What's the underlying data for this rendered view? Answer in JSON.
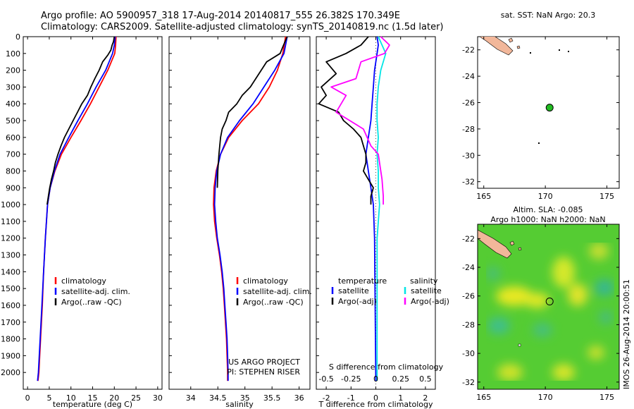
{
  "title": {
    "line1": "Argo profile: AO 5900957_318 17-Aug-2014 20140817_555 26.382S 170.349E",
    "line2": "Climatology: CARS2009. Satellite-adjusted climatology: synTS_20140819.nc (1.5d later)"
  },
  "colors": {
    "climatology": "#ff0000",
    "satellite": "#0000ff",
    "argo": "#000000",
    "sal_satellite": "#00e5e5",
    "sal_argo": "#ff00ff",
    "land": "#f2b79a",
    "marker": "#22bb22"
  },
  "credits": {
    "project": "US ARGO PROJECT",
    "pi": "PI: STEPHEN RISER"
  },
  "watermark": "IMOS 26-Aug-2014 20:00:51",
  "chart_data": [
    {
      "type": "line",
      "id": "temperature",
      "xlabel": "temperature (deg C)",
      "ylabel": "",
      "xlim": [
        -1,
        31
      ],
      "ylim": [
        2100,
        0
      ],
      "xticks": [
        0,
        5,
        10,
        15,
        20,
        25,
        30
      ],
      "yticks": [
        0,
        100,
        200,
        300,
        400,
        500,
        600,
        700,
        800,
        900,
        1000,
        1100,
        1200,
        1300,
        1400,
        1500,
        1600,
        1700,
        1800,
        1900,
        2000
      ],
      "legend": [
        "climatology",
        "satellite-adj. clim.",
        "Argo(..raw -QC)"
      ],
      "series": [
        {
          "name": "climatology",
          "color": "#ff0000",
          "points": [
            [
              20.4,
              0
            ],
            [
              20.3,
              50
            ],
            [
              20.1,
              100
            ],
            [
              18.5,
              200
            ],
            [
              16.5,
              300
            ],
            [
              14.5,
              400
            ],
            [
              12.3,
              500
            ],
            [
              10,
              600
            ],
            [
              7.8,
              700
            ],
            [
              6.3,
              800
            ],
            [
              5.2,
              900
            ],
            [
              4.6,
              1000
            ],
            [
              4.1,
              1200
            ],
            [
              3.7,
              1400
            ],
            [
              3.4,
              1600
            ],
            [
              3.0,
              1800
            ],
            [
              2.6,
              2000
            ],
            [
              2.4,
              2050
            ]
          ]
        },
        {
          "name": "satellite-adj. clim.",
          "color": "#0000ff",
          "points": [
            [
              20.2,
              0
            ],
            [
              20.0,
              50
            ],
            [
              19.6,
              100
            ],
            [
              18,
              200
            ],
            [
              15.8,
              300
            ],
            [
              13.8,
              400
            ],
            [
              11.6,
              500
            ],
            [
              9.5,
              600
            ],
            [
              7.5,
              700
            ],
            [
              6.2,
              800
            ],
            [
              5.2,
              900
            ],
            [
              4.6,
              1000
            ],
            [
              4.1,
              1200
            ],
            [
              3.7,
              1400
            ],
            [
              3.3,
              1600
            ],
            [
              2.9,
              1800
            ],
            [
              2.5,
              2000
            ],
            [
              2.3,
              2050
            ]
          ]
        },
        {
          "name": "Argo(..raw -QC)",
          "color": "#000000",
          "points": [
            [
              20.0,
              0
            ],
            [
              19.8,
              30
            ],
            [
              19.5,
              50
            ],
            [
              19.2,
              80
            ],
            [
              18.5,
              110
            ],
            [
              17.3,
              150
            ],
            [
              16.5,
              200
            ],
            [
              15.5,
              250
            ],
            [
              14.6,
              300
            ],
            [
              13.8,
              350
            ],
            [
              12.5,
              400
            ],
            [
              11.5,
              450
            ],
            [
              10.5,
              500
            ],
            [
              9.5,
              550
            ],
            [
              8.5,
              600
            ],
            [
              7.7,
              650
            ],
            [
              7,
              700
            ],
            [
              6.4,
              750
            ],
            [
              6,
              800
            ],
            [
              5.5,
              850
            ],
            [
              5.1,
              900
            ],
            [
              4.8,
              950
            ],
            [
              4.5,
              1000
            ]
          ]
        }
      ]
    },
    {
      "type": "line",
      "id": "salinity",
      "xlabel": "salinity",
      "ylabel": "",
      "xlim": [
        33.6,
        36.2
      ],
      "ylim": [
        2100,
        0
      ],
      "xticks": [
        34,
        34.5,
        35,
        35.5,
        36
      ],
      "legend": [
        "climatology",
        "satellite-adj. clim.",
        "Argo(..raw -QC)"
      ],
      "series": [
        {
          "name": "climatology",
          "color": "#ff0000",
          "points": [
            [
              35.75,
              0
            ],
            [
              35.7,
              100
            ],
            [
              35.6,
              200
            ],
            [
              35.45,
              300
            ],
            [
              35.25,
              400
            ],
            [
              34.95,
              500
            ],
            [
              34.7,
              600
            ],
            [
              34.55,
              700
            ],
            [
              34.47,
              800
            ],
            [
              34.43,
              900
            ],
            [
              34.42,
              1000
            ],
            [
              34.44,
              1100
            ],
            [
              34.48,
              1200
            ],
            [
              34.53,
              1300
            ],
            [
              34.57,
              1400
            ],
            [
              34.6,
              1500
            ],
            [
              34.62,
              1600
            ],
            [
              34.64,
              1700
            ],
            [
              34.66,
              1800
            ],
            [
              34.67,
              1900
            ],
            [
              34.68,
              2000
            ],
            [
              34.68,
              2050
            ]
          ]
        },
        {
          "name": "satellite-adj. clim.",
          "color": "#0000ff",
          "points": [
            [
              35.78,
              0
            ],
            [
              35.72,
              100
            ],
            [
              35.55,
              200
            ],
            [
              35.35,
              300
            ],
            [
              35.15,
              400
            ],
            [
              34.9,
              500
            ],
            [
              34.68,
              600
            ],
            [
              34.55,
              700
            ],
            [
              34.48,
              800
            ],
            [
              34.45,
              900
            ],
            [
              34.44,
              1000
            ],
            [
              34.46,
              1100
            ],
            [
              34.49,
              1200
            ],
            [
              34.54,
              1300
            ],
            [
              34.58,
              1400
            ],
            [
              34.61,
              1500
            ],
            [
              34.63,
              1600
            ],
            [
              34.65,
              1700
            ],
            [
              34.67,
              1800
            ],
            [
              34.68,
              1900
            ],
            [
              34.69,
              2000
            ],
            [
              34.69,
              2050
            ]
          ]
        },
        {
          "name": "Argo(..raw -QC)",
          "color": "#000000",
          "points": [
            [
              35.78,
              0
            ],
            [
              35.7,
              60
            ],
            [
              35.65,
              100
            ],
            [
              35.4,
              150
            ],
            [
              35.3,
              200
            ],
            [
              35.1,
              300
            ],
            [
              34.95,
              350
            ],
            [
              34.85,
              400
            ],
            [
              34.7,
              450
            ],
            [
              34.65,
              500
            ],
            [
              34.58,
              550
            ],
            [
              34.55,
              600
            ],
            [
              34.52,
              700
            ],
            [
              34.5,
              800
            ],
            [
              34.49,
              900
            ]
          ]
        }
      ]
    },
    {
      "type": "line",
      "id": "difference",
      "xlabel": "T difference from climatology",
      "xlabel2": "S difference from climatology",
      "xlim": [
        -2.4,
        2.4
      ],
      "ylim": [
        2100,
        0
      ],
      "xticks": [
        -2,
        -1,
        0,
        1,
        2
      ],
      "xticks_top": [
        "-0.5",
        "-0.25",
        "0",
        "0.25",
        "0.5"
      ],
      "legend_headers": [
        "temperature",
        "salinity"
      ],
      "legend": [
        "satellite",
        "Argo(-adj)",
        "satellite",
        "Argo(-adj)"
      ],
      "series": [
        {
          "name": "satellite",
          "color": "#0000ff",
          "points": [
            [
              0.05,
              0
            ],
            [
              0.1,
              50
            ],
            [
              0.05,
              100
            ],
            [
              -0.05,
              200
            ],
            [
              -0.1,
              300
            ],
            [
              -0.15,
              400
            ],
            [
              -0.2,
              500
            ],
            [
              -0.3,
              600
            ],
            [
              -0.4,
              700
            ],
            [
              -0.3,
              800
            ],
            [
              -0.2,
              900
            ],
            [
              -0.1,
              1000
            ],
            [
              -0.05,
              1200
            ],
            [
              0,
              2050
            ]
          ]
        },
        {
          "name": "Argo(-adj)",
          "color": "#000000",
          "points": [
            [
              -0.3,
              0
            ],
            [
              -0.6,
              50
            ],
            [
              -1.2,
              100
            ],
            [
              -2,
              150
            ],
            [
              -1.6,
              220
            ],
            [
              -2.2,
              300
            ],
            [
              -2,
              350
            ],
            [
              -2.3,
              400
            ],
            [
              -1.5,
              450
            ],
            [
              -1.3,
              500
            ],
            [
              -0.9,
              550
            ],
            [
              -0.6,
              600
            ],
            [
              -0.4,
              700
            ],
            [
              -0.4,
              750
            ],
            [
              -0.5,
              800
            ],
            [
              -0.3,
              850
            ],
            [
              -0.1,
              900
            ],
            [
              -0.2,
              950
            ],
            [
              -0.2,
              1000
            ]
          ]
        },
        {
          "name": "sal satellite",
          "color": "#00e5e5",
          "points": [
            [
              0.1,
              0
            ],
            [
              0.4,
              100
            ],
            [
              0.2,
              200
            ],
            [
              0.1,
              300
            ],
            [
              0.05,
              400
            ],
            [
              0.05,
              500
            ],
            [
              0.1,
              600
            ],
            [
              0.05,
              700
            ],
            [
              0.1,
              800
            ],
            [
              0.1,
              900
            ],
            [
              0.15,
              1000
            ],
            [
              0.05,
              1200
            ],
            [
              0.05,
              1500
            ],
            [
              0.05,
              2050
            ]
          ]
        },
        {
          "name": "sal Argo(-adj)",
          "color": "#ff00ff",
          "points": [
            [
              0.2,
              0
            ],
            [
              0.55,
              50
            ],
            [
              0.35,
              100
            ],
            [
              -0.6,
              150
            ],
            [
              -0.8,
              250
            ],
            [
              -1.8,
              300
            ],
            [
              -1.2,
              350
            ],
            [
              -1.6,
              450
            ],
            [
              -0.5,
              550
            ],
            [
              -0.2,
              650
            ],
            [
              0.1,
              700
            ],
            [
              0.25,
              850
            ],
            [
              0.3,
              950
            ],
            [
              0.3,
              1000
            ]
          ]
        }
      ]
    },
    {
      "type": "scatter",
      "id": "sst-map",
      "title": "sat. SST: NaN Argo: 20.3",
      "xlim": [
        164.5,
        176
      ],
      "ylim": [
        -32.5,
        -21
      ],
      "xticks": [
        165,
        170,
        175
      ],
      "yticks": [
        -22,
        -24,
        -26,
        -28,
        -30,
        -32
      ],
      "point": {
        "lon": 170.349,
        "lat": -26.382
      }
    },
    {
      "type": "heatmap",
      "id": "sla-map",
      "title": "Altim. SLA: -0.085",
      "subtitle": "Argo h1000: NaN h2000: NaN",
      "xlim": [
        164.5,
        176
      ],
      "ylim": [
        -32.5,
        -21
      ],
      "xticks": [
        165,
        170,
        175
      ],
      "yticks": [
        -22,
        -24,
        -26,
        -28,
        -30,
        -32
      ],
      "point": {
        "lon": 170.349,
        "lat": -26.382
      }
    }
  ]
}
